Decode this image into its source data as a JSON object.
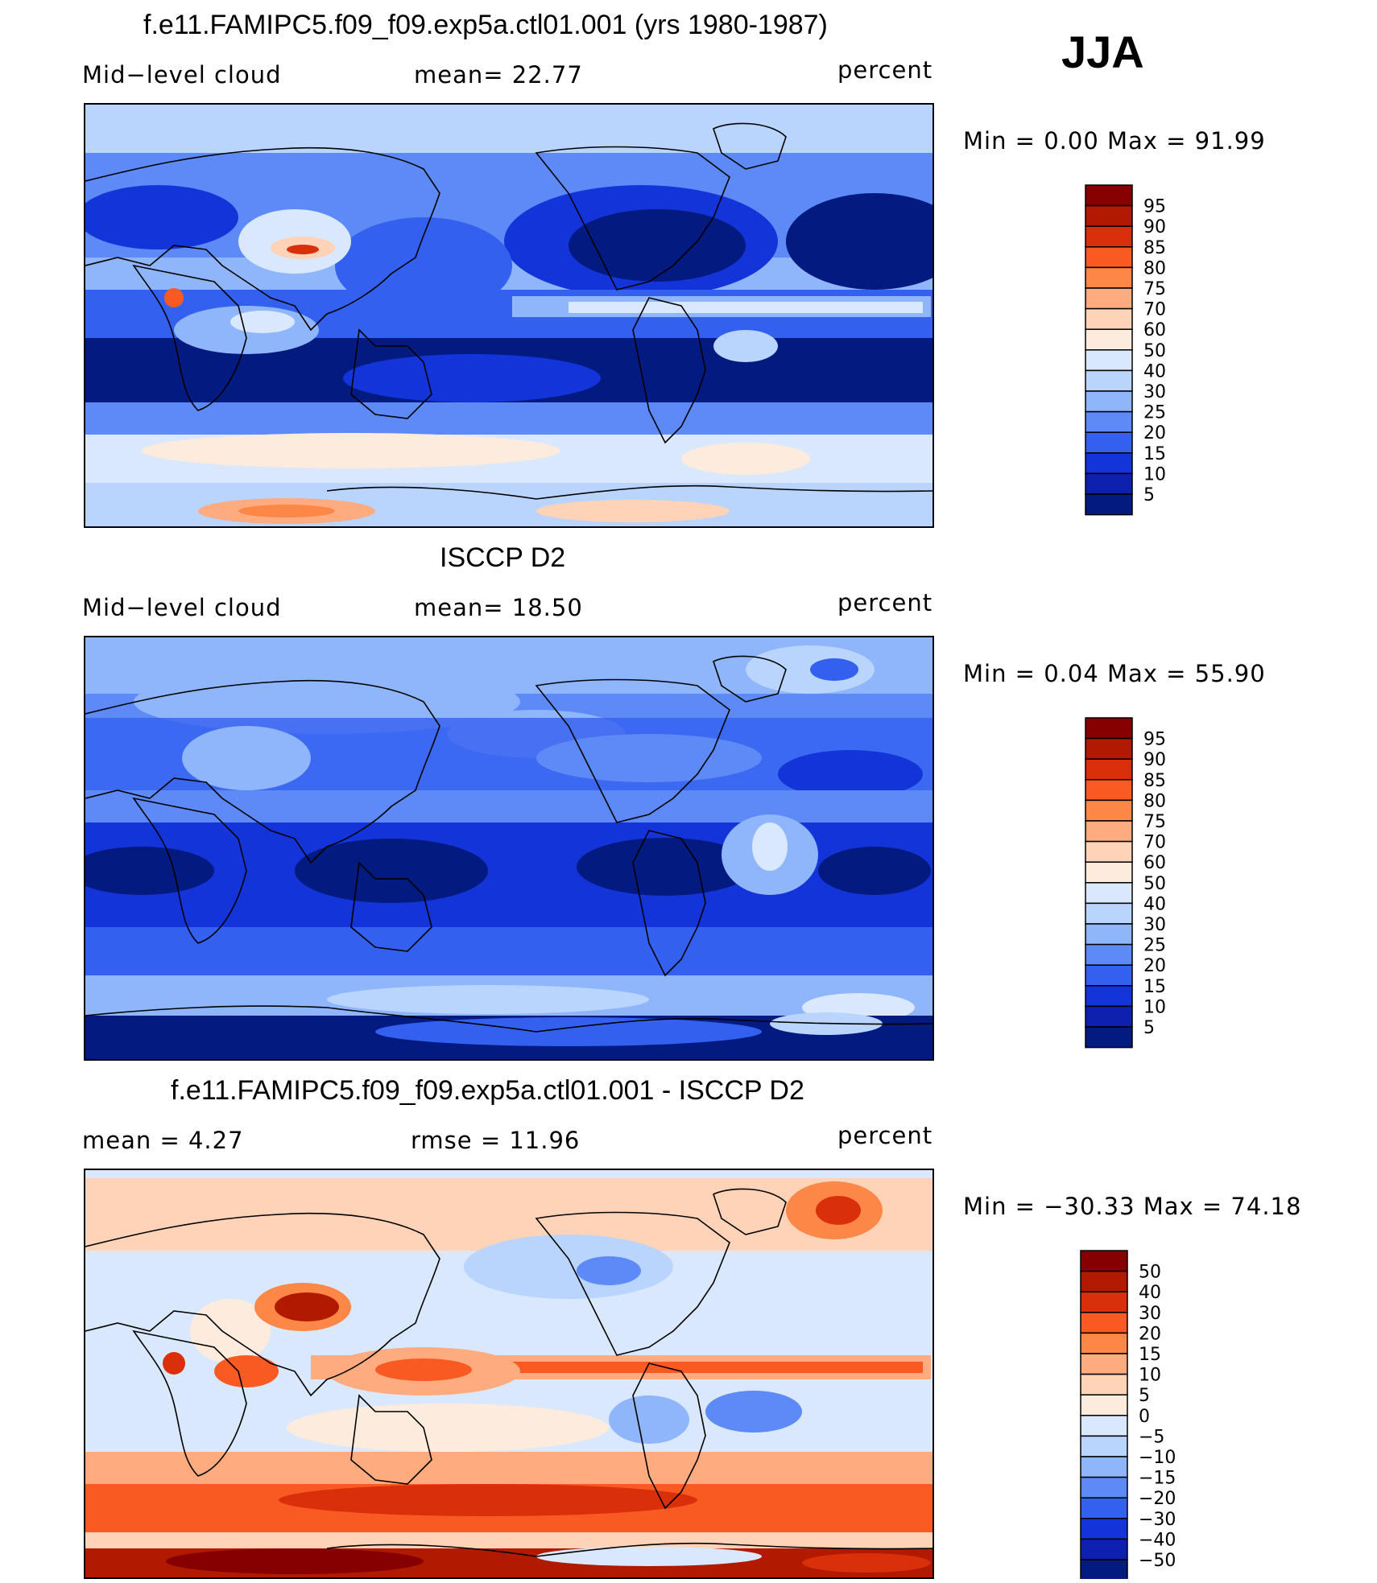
{
  "season": "JJA",
  "panels": [
    {
      "id": "model",
      "title": "f.e11.FAMIPC5.f09_f09.exp5a.ctl01.001 (yrs 1980-1987)",
      "left_label": "Mid−level cloud",
      "center_label": "mean=   22.77",
      "right_label": "percent",
      "minmax": "Min  =     0.00  Max  =    91.99",
      "colorbar_levels": [
        "95",
        "90",
        "85",
        "80",
        "75",
        "70",
        "60",
        "50",
        "40",
        "30",
        "25",
        "20",
        "15",
        "10",
        "5"
      ]
    },
    {
      "id": "obs",
      "title": "ISCCP D2",
      "left_label": "Mid−level cloud",
      "center_label": "mean=   18.50",
      "right_label": "percent",
      "minmax": "Min  =     0.04  Max  =    55.90",
      "colorbar_levels": [
        "95",
        "90",
        "85",
        "80",
        "75",
        "70",
        "60",
        "50",
        "40",
        "30",
        "25",
        "20",
        "15",
        "10",
        "5"
      ]
    },
    {
      "id": "diff",
      "title": "f.e11.FAMIPC5.f09_f09.exp5a.ctl01.001 - ISCCP D2",
      "left_label": "mean  =     4.27",
      "center_label": "rmse  =    11.96",
      "right_label": "percent",
      "minmax": "Min  = −30.33  Max  =    74.18",
      "colorbar_levels": [
        "50",
        "40",
        "30",
        "20",
        "15",
        "10",
        "5",
        "0",
        "−5",
        "−10",
        "−15",
        "−20",
        "−30",
        "−40",
        "−50"
      ]
    }
  ],
  "colors": {
    "abs_scale": [
      "#860000",
      "#b11a00",
      "#d92f0a",
      "#f95a22",
      "#fc8747",
      "#fdab7f",
      "#fed3b8",
      "#fdecdd",
      "#d9e8fc",
      "#b9d4fd",
      "#8fb5fb",
      "#5d8af6",
      "#3460f0",
      "#1234d8",
      "#0e20b0",
      "#031a80"
    ],
    "diff_scale": [
      "#860000",
      "#b11a00",
      "#d92f0a",
      "#f95a22",
      "#fc8747",
      "#fdab7f",
      "#fed3b8",
      "#fdecdd",
      "#d9e8fc",
      "#b9d4fd",
      "#8fb5fb",
      "#5d8af6",
      "#3460f0",
      "#1234d8",
      "#0e20b0",
      "#031a80"
    ]
  }
}
